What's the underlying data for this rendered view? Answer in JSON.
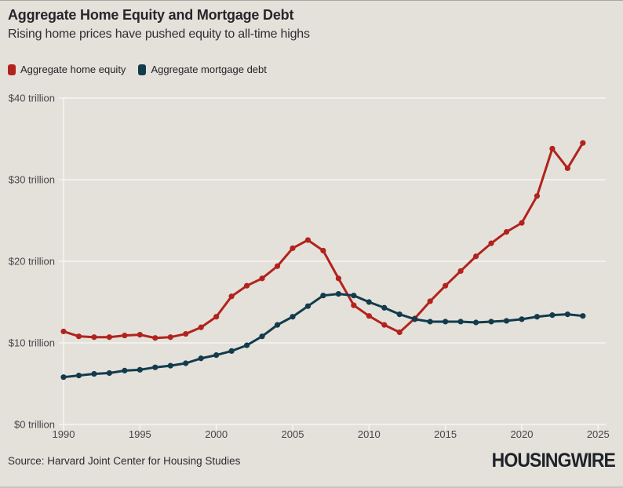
{
  "header": {
    "title": "Aggregate Home Equity and Mortgage Debt",
    "subtitle": "Rising home prices have pushed equity to all-time highs"
  },
  "legend": {
    "items": [
      {
        "label": "Aggregate home equity",
        "color": "#b2231d"
      },
      {
        "label": "Aggregate mortgage debt",
        "color": "#123b4c"
      }
    ]
  },
  "chart_data": {
    "type": "line",
    "title": "Aggregate Home Equity and Mortgage Debt",
    "subtitle": "Rising home prices have pushed equity to all-time highs",
    "units": "trillions of dollars",
    "x": [
      1990,
      1991,
      1992,
      1993,
      1994,
      1995,
      1996,
      1997,
      1998,
      1999,
      2000,
      2001,
      2002,
      2003,
      2004,
      2005,
      2006,
      2007,
      2008,
      2009,
      2010,
      2011,
      2012,
      2013,
      2014,
      2015,
      2016,
      2017,
      2018,
      2019,
      2020,
      2021,
      2022,
      2023,
      2024
    ],
    "series": [
      {
        "name": "Aggregate home equity",
        "color": "#b2231d",
        "values": [
          11.4,
          10.8,
          10.7,
          10.7,
          10.9,
          11.0,
          10.6,
          10.7,
          11.1,
          11.9,
          13.2,
          15.7,
          17.0,
          17.9,
          19.4,
          21.6,
          22.6,
          21.3,
          17.9,
          14.6,
          13.3,
          12.2,
          11.3,
          13.0,
          15.1,
          17.0,
          18.8,
          20.6,
          22.2,
          23.6,
          24.7,
          28.0,
          33.8,
          31.4,
          34.5
        ]
      },
      {
        "name": "Aggregate mortgage debt",
        "color": "#123b4c",
        "values": [
          5.8,
          6.0,
          6.2,
          6.3,
          6.6,
          6.7,
          7.0,
          7.2,
          7.5,
          8.1,
          8.5,
          9.0,
          9.7,
          10.8,
          12.2,
          13.2,
          14.5,
          15.8,
          16.0,
          15.8,
          15.0,
          14.3,
          13.5,
          12.9,
          12.6,
          12.6,
          12.6,
          12.5,
          12.6,
          12.7,
          12.9,
          13.2,
          13.4,
          13.5,
          13.3
        ]
      }
    ],
    "y_ticks": [
      {
        "value": 0,
        "label": "$0 trillion"
      },
      {
        "value": 10,
        "label": "$10 trillion"
      },
      {
        "value": 20,
        "label": "$20 trillion"
      },
      {
        "value": 30,
        "label": "$30 trillion"
      },
      {
        "value": 40,
        "label": "$40 trillion"
      }
    ],
    "x_ticks": [
      1990,
      1995,
      2000,
      2005,
      2010,
      2015,
      2020,
      2025
    ],
    "ylim": [
      0,
      40
    ],
    "xlim": [
      1990,
      2025
    ],
    "grid": "horizontal",
    "grid_color": "#f7f5f1",
    "markers": true,
    "legend_position": "top-left"
  },
  "footer": {
    "source": "Source: Harvard Joint Center for Housing Studies",
    "brand": "HOUSINGWIRE"
  }
}
